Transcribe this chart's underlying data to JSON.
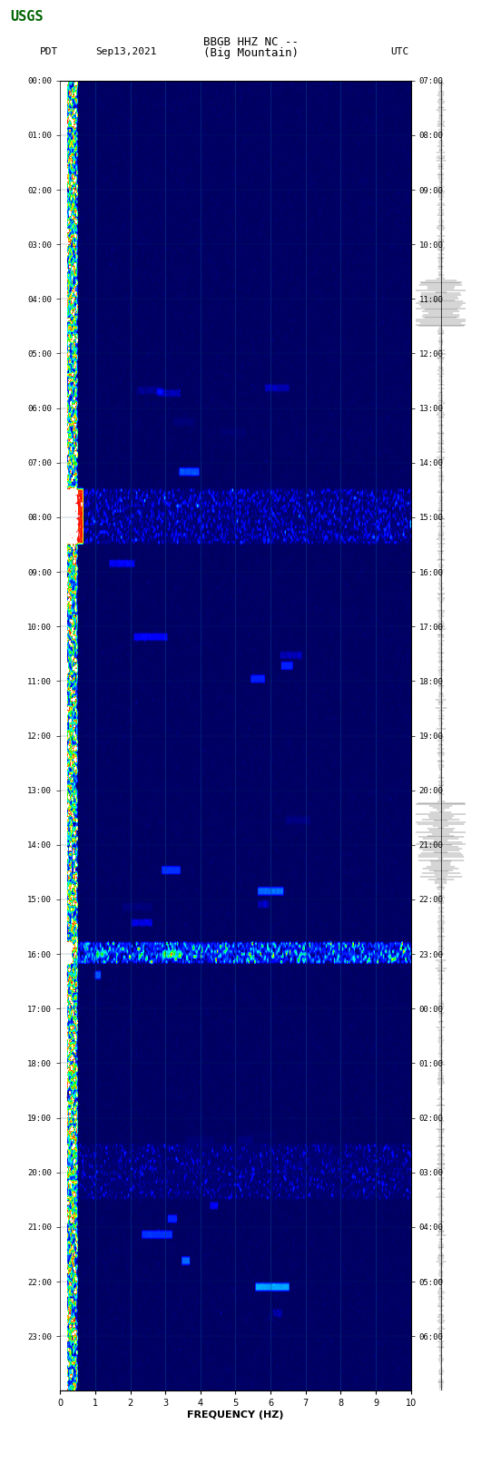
{
  "title_line1": "BBGB HHZ NC --",
  "title_line2": "(Big Mountain)",
  "left_label": "PDT",
  "left_date": "Sep13,2021",
  "right_label": "UTC",
  "xlabel": "FREQUENCY (HZ)",
  "pdt_times": [
    "00:00",
    "01:00",
    "02:00",
    "03:00",
    "04:00",
    "05:00",
    "06:00",
    "07:00",
    "08:00",
    "09:00",
    "10:00",
    "11:00",
    "12:00",
    "13:00",
    "14:00",
    "15:00",
    "16:00",
    "17:00",
    "18:00",
    "19:00",
    "20:00",
    "21:00",
    "22:00",
    "23:00"
  ],
  "utc_times": [
    "07:00",
    "08:00",
    "09:00",
    "10:00",
    "11:00",
    "12:00",
    "13:00",
    "14:00",
    "15:00",
    "16:00",
    "17:00",
    "18:00",
    "19:00",
    "20:00",
    "21:00",
    "22:00",
    "23:00",
    "00:00",
    "01:00",
    "02:00",
    "03:00",
    "04:00",
    "05:00",
    "06:00"
  ],
  "freq_min": 0,
  "freq_max": 10,
  "freq_ticks": [
    0,
    1,
    2,
    3,
    4,
    5,
    6,
    7,
    8,
    9,
    10
  ],
  "time_rows": 24,
  "background_color": "#ffffff",
  "spectrogram_bg": "#000080",
  "usgs_color": "#006400",
  "noise_band_freq": 0.2,
  "grid_freqs": [
    1,
    2,
    3,
    4,
    5,
    6,
    7,
    8,
    9
  ],
  "fig_width": 5.52,
  "fig_height": 16.13
}
